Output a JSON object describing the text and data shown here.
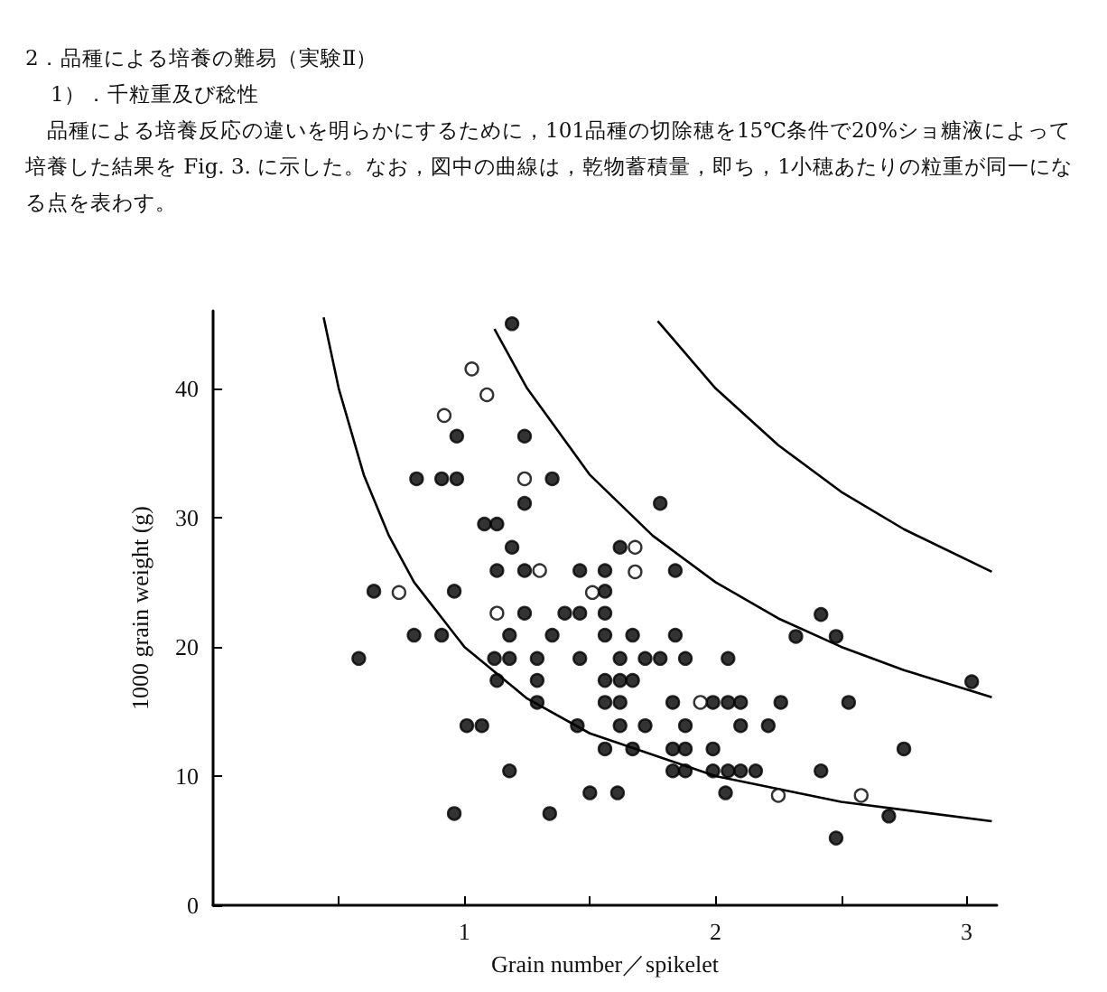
{
  "chart_data": {
    "type": "scatter",
    "title": "2．品種による培養の難易（実験Ⅱ）",
    "subtitle": "1）．千粒重及び稔性",
    "annotations": [
      "品種による培養反応の違いを明らかにするために，101品種の切除穂を15℃条件で20%ショ糖液によって培養した結果を Fig. 3. に示した。なお，図中の曲線は，乾物蓄積量，即ち，1小穂あたりの粒重が同一になる点を表わす。"
    ],
    "xlabel": "Grain number／spikelet",
    "ylabel": "1000 grain weight (g)",
    "xlim": [
      0,
      3.12
    ],
    "ylim": [
      0,
      46
    ],
    "xticks": [
      {
        "value": 0.5,
        "label": null
      },
      1,
      {
        "value": 1.5,
        "label": null
      },
      2,
      {
        "value": 2.5,
        "label": null
      },
      3
    ],
    "yticks": [
      0,
      10,
      20,
      30,
      40
    ],
    "grid": false,
    "marker": "circle",
    "series": [
      {
        "type": "scatter",
        "color": "#000000",
        "x": [
          1.19,
          0.97,
          1.24,
          0.81,
          0.91,
          0.97,
          1.35,
          1.24,
          1.78,
          1.08,
          1.13,
          1.19,
          1.62,
          1.13,
          1.24,
          1.46,
          1.56,
          1.84,
          0.64,
          0.96,
          1.56,
          1.24,
          1.4,
          1.46,
          1.56,
          2.42,
          0.8,
          0.91,
          1.18,
          1.35,
          1.56,
          1.67,
          1.84,
          2.32,
          2.48,
          0.58,
          1.12,
          1.18,
          1.29,
          1.46,
          1.62,
          1.72,
          1.78,
          1.88,
          2.05,
          1.13,
          1.29,
          1.56,
          1.62,
          1.67,
          3.02,
          1.29,
          1.56,
          1.62,
          1.83,
          1.99,
          2.05,
          2.1,
          2.26,
          2.53,
          1.01,
          1.07,
          1.45,
          1.62,
          1.72,
          1.88,
          2.1,
          2.21,
          1.56,
          1.67,
          1.83,
          1.88,
          1.99,
          2.75,
          1.18,
          1.83,
          1.88,
          1.99,
          2.05,
          2.1,
          2.16,
          2.42,
          1.5,
          1.61,
          2.04,
          0.96,
          1.34,
          2.69,
          2.48
        ],
        "values": [
          45.0,
          36.3,
          36.3,
          33.0,
          33.0,
          33.0,
          33.0,
          31.1,
          31.1,
          29.5,
          29.5,
          27.7,
          27.7,
          25.9,
          25.9,
          25.9,
          25.9,
          25.9,
          24.3,
          24.3,
          24.3,
          22.6,
          22.6,
          22.6,
          22.6,
          22.5,
          20.9,
          20.9,
          20.9,
          20.9,
          20.9,
          20.9,
          20.9,
          20.8,
          20.8,
          19.1,
          19.1,
          19.1,
          19.1,
          19.1,
          19.1,
          19.1,
          19.1,
          19.1,
          19.1,
          17.4,
          17.4,
          17.4,
          17.4,
          17.4,
          17.3,
          15.7,
          15.7,
          15.7,
          15.7,
          15.7,
          15.7,
          15.7,
          15.7,
          15.7,
          13.9,
          13.9,
          13.9,
          13.9,
          13.9,
          13.9,
          13.9,
          13.9,
          12.1,
          12.1,
          12.1,
          12.1,
          12.1,
          12.1,
          10.4,
          10.4,
          10.4,
          10.4,
          10.4,
          10.4,
          10.4,
          10.4,
          8.7,
          8.7,
          8.7,
          7.1,
          7.1,
          6.9,
          5.2
        ]
      },
      {
        "type": "scatter",
        "color": "#ffffff",
        "x": [
          1.03,
          1.09,
          0.92,
          1.24,
          1.3,
          0.74,
          1.51,
          1.13,
          1.68,
          1.68,
          1.94,
          2.25,
          2.58
        ],
        "values": [
          41.5,
          39.5,
          37.9,
          33.0,
          25.9,
          24.2,
          24.2,
          22.6,
          27.7,
          25.8,
          15.7,
          8.5,
          8.5
        ]
      },
      {
        "type": "line",
        "color": "#000000",
        "marker": "none",
        "x": [
          0.44,
          0.5,
          0.6,
          0.7,
          0.8,
          1,
          1.25,
          1.5,
          2,
          2.5,
          3.1
        ],
        "values": [
          45.5,
          40,
          33.3,
          28.6,
          25,
          20,
          16,
          13.3,
          10,
          8,
          6.5
        ]
      },
      {
        "type": "line",
        "color": "#000000",
        "marker": "none",
        "x": [
          1.12,
          1.25,
          1.5,
          1.75,
          2,
          2.25,
          2.5,
          2.75,
          3.1
        ],
        "values": [
          44.6,
          40,
          33.3,
          28.6,
          25,
          22.2,
          20,
          18.2,
          16.1
        ]
      },
      {
        "type": "line",
        "color": "#000000",
        "marker": "none",
        "x": [
          1.77,
          2,
          2.25,
          2.5,
          2.75,
          3.1
        ],
        "values": [
          45.2,
          40,
          35.6,
          32,
          29.1,
          25.8
        ]
      }
    ]
  }
}
